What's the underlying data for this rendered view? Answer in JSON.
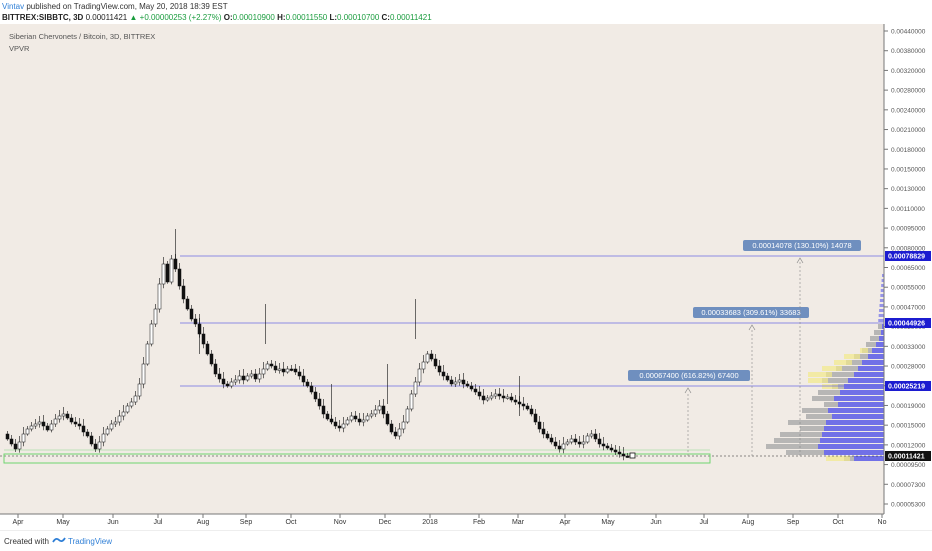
{
  "header": {
    "author": "Vintav",
    "published_text": "published on TradingView.com, May 20, 2018 18:39 EST",
    "symbol": "BITTREX:SIBBTC, 3D",
    "last": "0.00011421",
    "change_arrow": "▲",
    "change": "+0.00000253 (+2.27%)",
    "o_label": "O:",
    "o_value": "0.00010900",
    "h_label": "H:",
    "h_value": "0.00011550",
    "l_label": "L:",
    "l_value": "0.00010700",
    "c_label": "C:",
    "c_value": "0.00011421"
  },
  "legend": {
    "title": "Siberian Chervonets / Bitcoin, 3D, BITTREX",
    "indicator": "VPVR"
  },
  "annotations": [
    {
      "text": "0.00067400 (616.82%) 67400"
    },
    {
      "text": "0.00033683 (309.61%) 33683"
    },
    {
      "text": "0.00014078 (130.10%) 14078"
    }
  ],
  "price_tags": [
    {
      "text": "0.00078829",
      "color": "#1c1cd0"
    },
    {
      "text": "0.00044926",
      "color": "#1c1cd0"
    },
    {
      "text": "0.00025219",
      "color": "#1c1cd0"
    },
    {
      "text": "0.00011421",
      "color": "#111111"
    }
  ],
  "footer": {
    "created_with": "Created with",
    "brand": "TradingView"
  },
  "colors": {
    "background": "#f1ebe5",
    "level_line": "#6b6be0",
    "support_box": "#6fd66f",
    "annotation_bg": "#6f8fbf",
    "vpvr_blue": "#5a5ae8",
    "vpvr_gray": "#a9a9a9",
    "vpvr_yellow": "#f2ea8a"
  },
  "chart_data": {
    "type": "candlestick",
    "x_tick_labels": [
      "Apr",
      "May",
      "Jun",
      "Jul",
      "Aug",
      "Sep",
      "Oct",
      "Nov",
      "Dec",
      "2018",
      "Feb",
      "Mar",
      "Apr",
      "May",
      "Jun",
      "Jul",
      "Aug",
      "Sep",
      "Oct",
      "No"
    ],
    "y_tick_labels": [
      "0.00440000",
      "0.00380000",
      "0.00320000",
      "0.00280000",
      "0.00240000",
      "0.00210000",
      "0.00180000",
      "0.00150000",
      "0.00130000",
      "0.00110000",
      "0.00095000",
      "0.00080000",
      "0.00065000",
      "0.00055000",
      "0.00047000",
      "0.00039000",
      "0.00033000",
      "0.00028000",
      "0.00023000",
      "0.00019000",
      "0.00015000",
      "0.00012000",
      "0.00009500",
      "0.00007300",
      "0.00005300"
    ],
    "scale": "log",
    "horizontal_levels": [
      0.00078829,
      0.00044926,
      0.00025219,
      0.00011421
    ]
  }
}
